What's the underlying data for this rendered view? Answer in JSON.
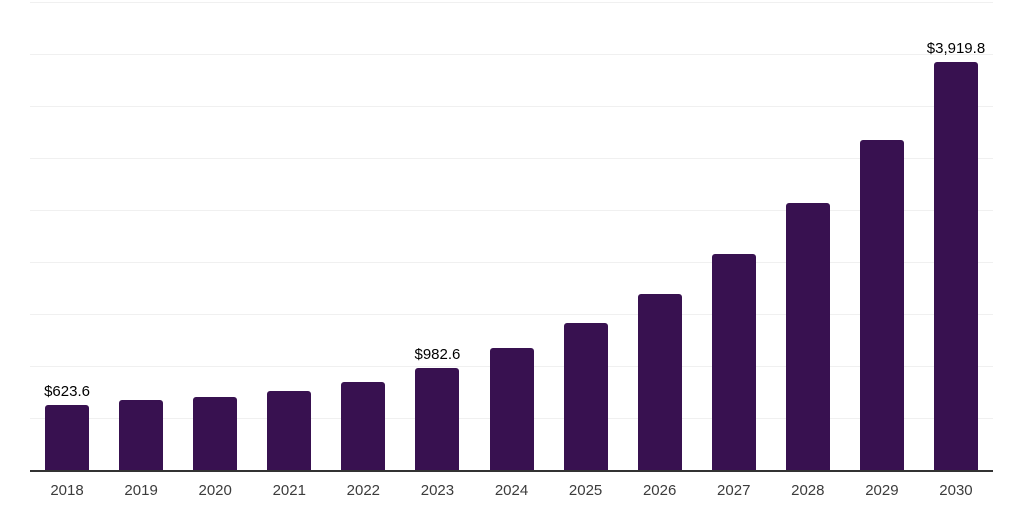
{
  "chart": {
    "background": "#ffffff",
    "bar_color": "#381150",
    "axis_line_color": "#333333",
    "gridline_color": "#f0f0f0",
    "value_label_color": "#000000",
    "tick_label_color": "#3c3c3c"
  },
  "chart_data": {
    "type": "bar",
    "title": "",
    "xlabel": "",
    "ylabel": "",
    "categories": [
      "2018",
      "2019",
      "2020",
      "2021",
      "2022",
      "2023",
      "2024",
      "2025",
      "2026",
      "2027",
      "2028",
      "2029",
      "2030"
    ],
    "values": [
      623.6,
      670,
      705,
      762,
      843,
      982.6,
      1173,
      1410,
      1692,
      2077,
      2570,
      3173,
      3919.8
    ],
    "value_labels": [
      "$623.6",
      "",
      "",
      "",
      "",
      "$982.6",
      "",
      "",
      "",
      "",
      "",
      "",
      "$3,919.8"
    ],
    "ylim": [
      0,
      4500
    ],
    "y_gridline_step": 500,
    "grid": true,
    "legend": false,
    "y_axis_tick_labels_visible": false
  }
}
